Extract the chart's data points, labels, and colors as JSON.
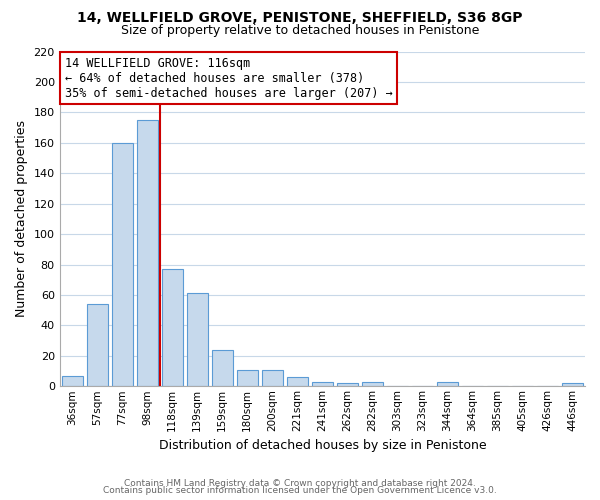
{
  "title1": "14, WELLFIELD GROVE, PENISTONE, SHEFFIELD, S36 8GP",
  "title2": "Size of property relative to detached houses in Penistone",
  "xlabel": "Distribution of detached houses by size in Penistone",
  "ylabel": "Number of detached properties",
  "bar_labels": [
    "36sqm",
    "57sqm",
    "77sqm",
    "98sqm",
    "118sqm",
    "139sqm",
    "159sqm",
    "180sqm",
    "200sqm",
    "221sqm",
    "241sqm",
    "262sqm",
    "282sqm",
    "303sqm",
    "323sqm",
    "344sqm",
    "364sqm",
    "385sqm",
    "405sqm",
    "426sqm",
    "446sqm"
  ],
  "bar_values": [
    7,
    54,
    160,
    175,
    77,
    61,
    24,
    11,
    11,
    6,
    3,
    2,
    3,
    0,
    0,
    3,
    0,
    0,
    0,
    0,
    2
  ],
  "bar_color": "#c6d9ec",
  "bar_edge_color": "#5b9bd5",
  "vline_x_idx": 3.5,
  "vline_color": "#cc0000",
  "annotation_title": "14 WELLFIELD GROVE: 116sqm",
  "annotation_line1": "← 64% of detached houses are smaller (378)",
  "annotation_line2": "35% of semi-detached houses are larger (207) →",
  "annotation_box_color": "#ffffff",
  "annotation_box_edge": "#cc0000",
  "ylim": [
    0,
    220
  ],
  "yticks": [
    0,
    20,
    40,
    60,
    80,
    100,
    120,
    140,
    160,
    180,
    200,
    220
  ],
  "footnote1": "Contains HM Land Registry data © Crown copyright and database right 2024.",
  "footnote2": "Contains public sector information licensed under the Open Government Licence v3.0.",
  "bg_color": "#ffffff",
  "grid_color": "#c8d8e8"
}
